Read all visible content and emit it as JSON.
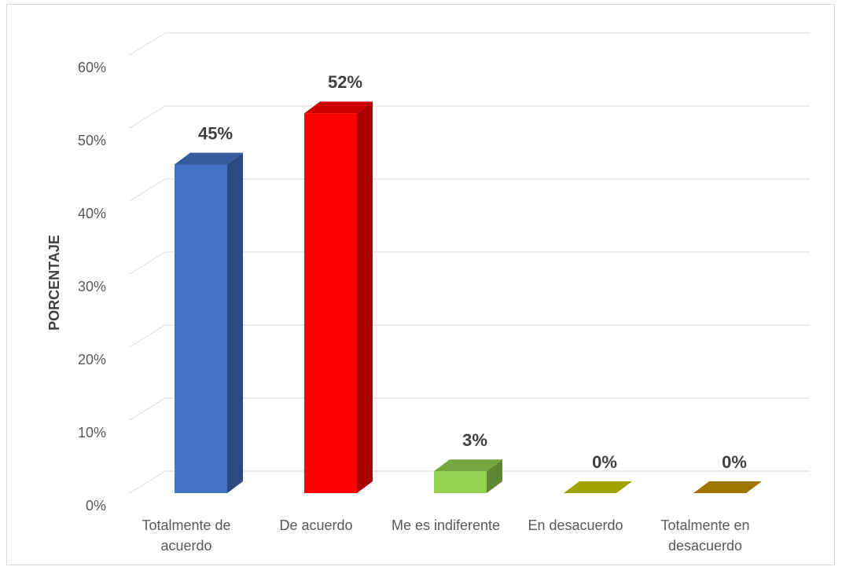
{
  "chart_data": {
    "type": "bar3d",
    "ylabel": "PORCENTAJE",
    "categories": [
      "Totalmente de acuerdo",
      "De acuerdo",
      "Me es indiferente",
      "En desacuerdo",
      "Totalmente en desacuerdo"
    ],
    "values": [
      45,
      52,
      3,
      0,
      0
    ],
    "value_labels": [
      "45%",
      "52%",
      "3%",
      "0%",
      "0%"
    ],
    "colors": [
      "#4472c4",
      "#ff0000",
      "#92d050",
      "#c9c900",
      "#c59400"
    ],
    "ylim": [
      0,
      60
    ],
    "yticks": [
      {
        "value": 0,
        "label": "0%"
      },
      {
        "value": 10,
        "label": "10%"
      },
      {
        "value": 20,
        "label": "20%"
      },
      {
        "value": 30,
        "label": "30%"
      },
      {
        "value": 40,
        "label": "40%"
      },
      {
        "value": 50,
        "label": "50%"
      },
      {
        "value": 60,
        "label": "60%"
      }
    ],
    "grid": true
  }
}
